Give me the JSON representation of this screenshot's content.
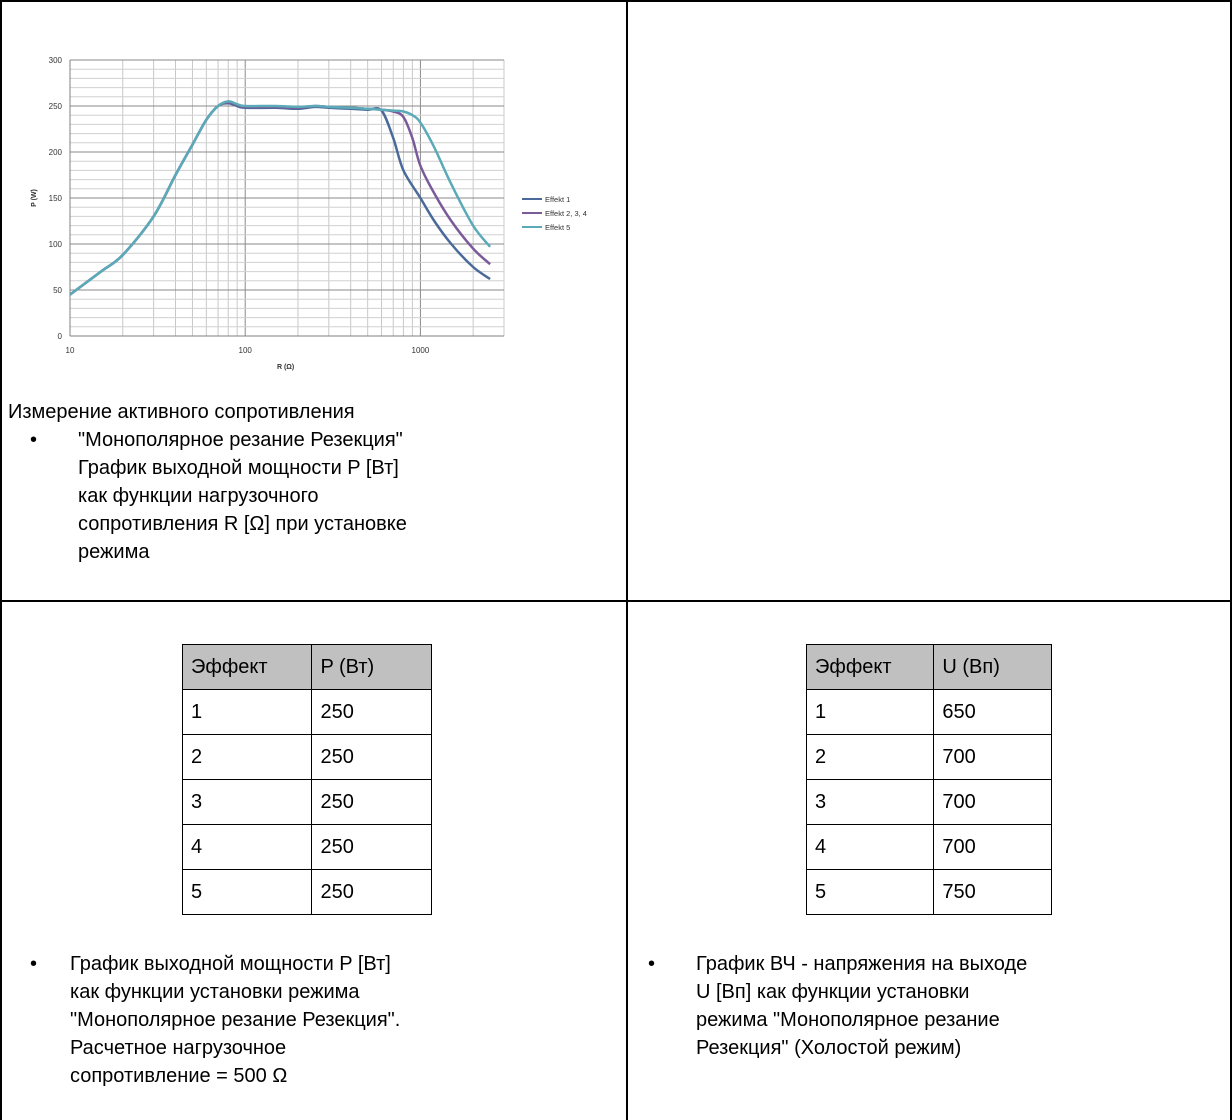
{
  "chart_data": {
    "type": "line",
    "xscale": "log",
    "xlabel": "R (Ω)",
    "ylabel": "P (W)",
    "xlim": [
      10,
      2500
    ],
    "ylim": [
      0,
      300
    ],
    "xticks": [
      "10",
      "100",
      "1000"
    ],
    "yticks": [
      "0",
      "50",
      "100",
      "150",
      "200",
      "250",
      "300"
    ],
    "grid": true,
    "legend_position": "right",
    "series": [
      {
        "name": "Effekt 1",
        "color": "#4a6a9a",
        "x": [
          10,
          15,
          20,
          30,
          40,
          50,
          60,
          70,
          80,
          90,
          100,
          150,
          200,
          250,
          300,
          400,
          500,
          600,
          700,
          800,
          1000,
          1200,
          1500,
          2000,
          2500
        ],
        "y": [
          45,
          70,
          88,
          130,
          175,
          208,
          235,
          250,
          253,
          250,
          248,
          248,
          247,
          249,
          248,
          247,
          246,
          245,
          215,
          180,
          150,
          125,
          100,
          75,
          62
        ]
      },
      {
        "name": "Effekt 2, 3, 4",
        "color": "#7b5a9a",
        "x": [
          10,
          15,
          20,
          30,
          40,
          50,
          60,
          70,
          80,
          90,
          100,
          150,
          200,
          250,
          300,
          400,
          500,
          600,
          700,
          800,
          900,
          1000,
          1200,
          1500,
          2000,
          2500
        ],
        "y": [
          45,
          70,
          88,
          130,
          175,
          208,
          235,
          250,
          254,
          251,
          249,
          249,
          248,
          250,
          249,
          248,
          247,
          246,
          244,
          238,
          215,
          185,
          155,
          125,
          95,
          78
        ]
      },
      {
        "name": "Effekt 5",
        "color": "#5aaab8",
        "x": [
          10,
          15,
          20,
          30,
          40,
          50,
          60,
          70,
          80,
          90,
          100,
          150,
          200,
          250,
          300,
          400,
          500,
          600,
          700,
          800,
          900,
          1000,
          1200,
          1500,
          2000,
          2500
        ],
        "y": [
          45,
          70,
          88,
          130,
          175,
          208,
          235,
          250,
          255,
          252,
          250,
          250,
          249,
          250,
          249,
          248,
          247,
          246,
          245,
          244,
          240,
          232,
          205,
          165,
          120,
          97
        ]
      }
    ]
  },
  "top_left": {
    "caption": "Измерение активного сопротивления",
    "bullet": "\"Монополярное резание Резекция\"\nГрафик выходной мощности P [Вт]\nкак функции нагрузочного\nсопротивления R [Ω] при установке\nрежима"
  },
  "bottom_left": {
    "table": {
      "headers": [
        "Эффект",
        "P (Вт)"
      ],
      "rows": [
        [
          "1",
          "250"
        ],
        [
          "2",
          "250"
        ],
        [
          "3",
          "250"
        ],
        [
          "4",
          "250"
        ],
        [
          "5",
          "250"
        ]
      ]
    },
    "bullet": "График выходной мощности P [Вт]\nкак функции установки режима\n\"Монополярное резание Резекция\".\nРасчетное нагрузочное\nсопротивление = 500 Ω"
  },
  "bottom_right": {
    "table": {
      "headers": [
        "Эффект",
        "U (Вп)"
      ],
      "rows": [
        [
          "1",
          "650"
        ],
        [
          "2",
          "700"
        ],
        [
          "3",
          "700"
        ],
        [
          "4",
          "700"
        ],
        [
          "5",
          "750"
        ]
      ]
    },
    "bullet": "График ВЧ - напряжения на выходе\nU [Вп] как функции установки\nрежима \"Монополярное резание\nРезекция\" (Холостой режим)"
  },
  "bullet_symbol": "•"
}
